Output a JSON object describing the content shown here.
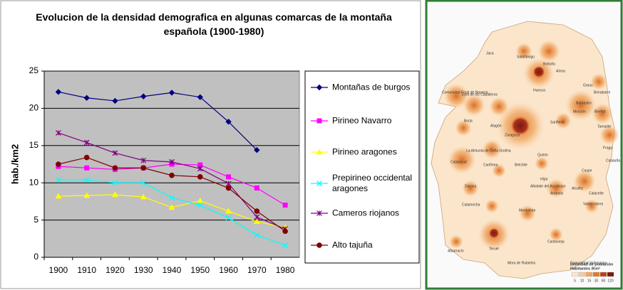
{
  "chart_data": {
    "type": "line",
    "title": "Evolucion de la densidad demografica en algunas comarcas de la montaña española (1900-1980)",
    "ylabel": "hab./km2",
    "categories": [
      "1900",
      "1910",
      "1920",
      "1930",
      "1940",
      "1950",
      "1960",
      "1970",
      "1980"
    ],
    "ylim": [
      0,
      25
    ],
    "yticks": [
      0,
      5,
      10,
      15,
      20,
      25
    ],
    "grid": true,
    "legend": "right",
    "series": [
      {
        "name": "Montañas de burgos",
        "color": "#000080",
        "marker": "diamond",
        "values": [
          22.2,
          21.4,
          21.0,
          21.6,
          22.1,
          21.5,
          18.2,
          14.4,
          null
        ]
      },
      {
        "name": "Pirineo Navarro",
        "color": "#ff00ff",
        "marker": "square",
        "values": [
          12.2,
          12.0,
          11.8,
          12.0,
          12.5,
          12.4,
          10.8,
          9.3,
          7.0
        ]
      },
      {
        "name": "Pirineo aragones",
        "color": "#ffff00",
        "marker": "triangle",
        "values": [
          8.2,
          8.3,
          8.4,
          8.1,
          6.7,
          7.6,
          6.2,
          4.8,
          4.0
        ]
      },
      {
        "name": "Prepirineo occidental aragones",
        "color": "#00ffff",
        "marker": "x",
        "values": [
          10.4,
          10.4,
          10.0,
          10.0,
          8.0,
          7.0,
          5.3,
          3.0,
          1.6
        ]
      },
      {
        "name": "Cameros riojanos",
        "color": "#800080",
        "marker": "star",
        "values": [
          16.7,
          15.4,
          14.0,
          13.0,
          12.8,
          11.9,
          9.9,
          5.4,
          3.8
        ]
      },
      {
        "name": "Alto tajuña",
        "color": "#800000",
        "marker": "circle",
        "values": [
          12.5,
          13.4,
          12.0,
          12.0,
          11.0,
          10.8,
          9.3,
          6.2,
          3.5
        ]
      }
    ]
  },
  "map": {
    "labels": [
      "Comunidad Foral de Navarra",
      "Jaca",
      "Sabiñánigo",
      "Boltaña",
      "Aínsa",
      "Graus",
      "Benabarre",
      "Ejea de los Caballeros",
      "Huesca",
      "Barbastro",
      "Monzón",
      "Binéfar",
      "Borja",
      "Sariñena",
      "Tamarite",
      "Alagón",
      "Zaragoza",
      "Fraga",
      "La Almunia de Doña Godina",
      "Calatayud",
      "Cariñena",
      "Quinto",
      "Belchite",
      "Caspe",
      "Daroca",
      "Híjar",
      "Albalate del Arzobispo",
      "Andorra",
      "Alcañiz",
      "Calaceite",
      "Valderrobres",
      "Calamocha",
      "Montalbán",
      "Cantavieja",
      "Albarracín",
      "Teruel",
      "Mora de Rubielos",
      "Comunidad Valenciana",
      "Cataluña"
    ],
    "legend": {
      "title": "Densidad de población",
      "subtitle": "Habitantes /Km²",
      "classes": [
        "5",
        "10",
        "15",
        "30",
        "60",
        "120"
      ]
    }
  }
}
